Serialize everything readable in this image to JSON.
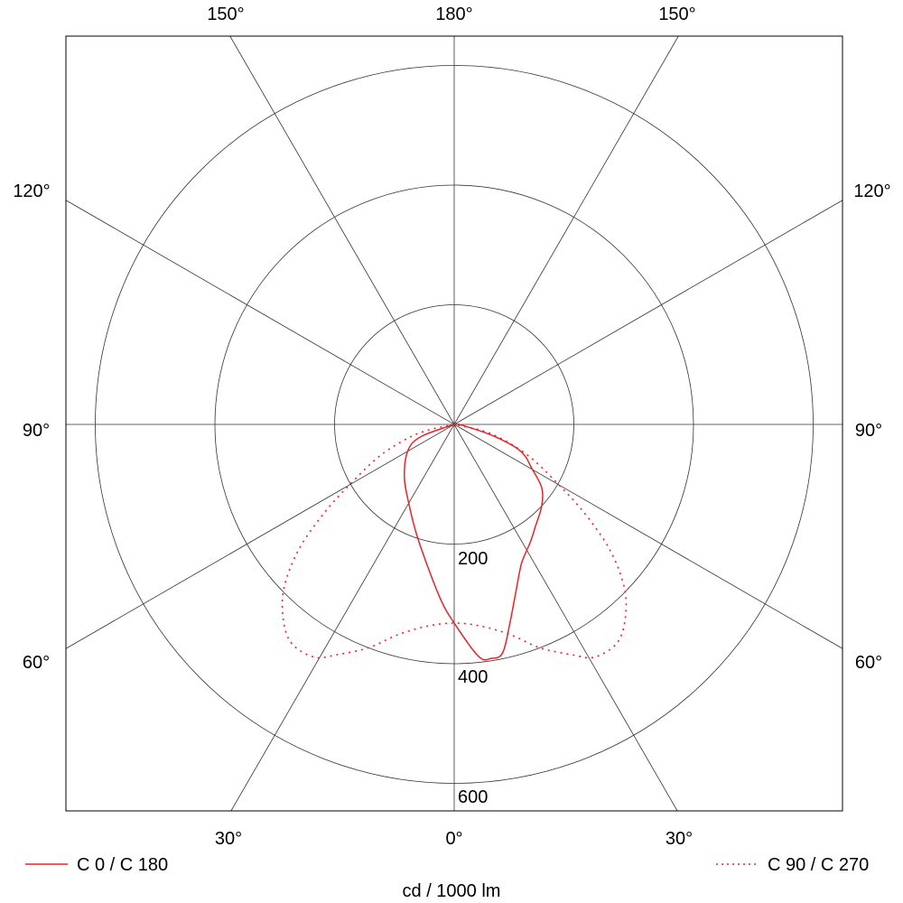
{
  "chart_data": {
    "type": "polar-line",
    "unit_label": "cd / 1000 lm",
    "radial_ticks": [
      200,
      400,
      600
    ],
    "r_max": 650,
    "angle_labels": {
      "top": [
        "150°",
        "180°",
        "150°"
      ],
      "left": [
        "120°",
        "90°",
        "60°"
      ],
      "right": [
        "120°",
        "90°",
        "60°"
      ],
      "bottom": [
        "30°",
        "0°",
        "30°"
      ]
    },
    "spoke_step_deg": 30,
    "grid": true,
    "legend_position": "bottom",
    "series": [
      {
        "name": "C 0 / C 180",
        "style": "solid",
        "color": "#e8232a",
        "points": [
          [
            -90,
            0
          ],
          [
            -70,
            58
          ],
          [
            -61,
            88
          ],
          [
            -44,
            120
          ],
          [
            -30,
            152
          ],
          [
            -17.5,
            201
          ],
          [
            -5,
            288
          ],
          [
            0,
            332
          ],
          [
            6,
            390
          ],
          [
            9,
            396
          ],
          [
            12,
            390
          ],
          [
            16,
            341
          ],
          [
            24,
            269
          ],
          [
            27,
            253
          ],
          [
            33,
            234
          ],
          [
            38.5,
            218
          ],
          [
            47,
            200
          ],
          [
            54,
            181
          ],
          [
            60,
            151
          ],
          [
            68,
            120
          ],
          [
            73.5,
            69
          ],
          [
            85,
            12
          ],
          [
            90,
            0
          ]
        ]
      },
      {
        "name": "C 90 / C 270",
        "style": "dotted",
        "color": "#e8232a",
        "points": [
          [
            -90,
            0
          ],
          [
            -76,
            62
          ],
          [
            -67.5,
            131
          ],
          [
            -60,
            202
          ],
          [
            -55.5,
            267
          ],
          [
            -51,
            336
          ],
          [
            -46,
            396
          ],
          [
            -41,
            435
          ],
          [
            -36.5,
            456
          ],
          [
            -31,
            454
          ],
          [
            -27,
            432
          ],
          [
            -21,
            400
          ],
          [
            -15,
            364
          ],
          [
            -7.5,
            340
          ],
          [
            0,
            332
          ],
          [
            7.5,
            340
          ],
          [
            15,
            364
          ],
          [
            21,
            400
          ],
          [
            27,
            432
          ],
          [
            31,
            454
          ],
          [
            36.5,
            456
          ],
          [
            41,
            435
          ],
          [
            46,
            396
          ],
          [
            51,
            336
          ],
          [
            55.5,
            267
          ],
          [
            60,
            202
          ],
          [
            67.5,
            131
          ],
          [
            76,
            62
          ],
          [
            90,
            0
          ]
        ]
      }
    ]
  }
}
